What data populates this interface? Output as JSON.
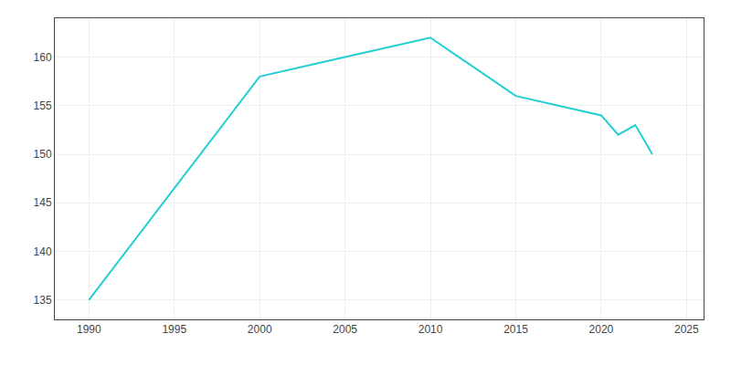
{
  "chart_data": {
    "type": "line",
    "x": [
      1990,
      2000,
      2005,
      2010,
      2015,
      2020,
      2021,
      2022,
      2023
    ],
    "values": [
      135,
      158,
      160,
      162,
      156,
      154,
      152,
      153,
      150
    ],
    "color": "#22CED1",
    "xlim": [
      1988,
      2026
    ],
    "ylim": [
      133,
      164
    ],
    "xticks": [
      1990,
      1995,
      2000,
      2005,
      2010,
      2015,
      2020,
      2025
    ],
    "yticks": [
      135,
      140,
      145,
      150,
      155,
      160
    ],
    "grid": true
  }
}
